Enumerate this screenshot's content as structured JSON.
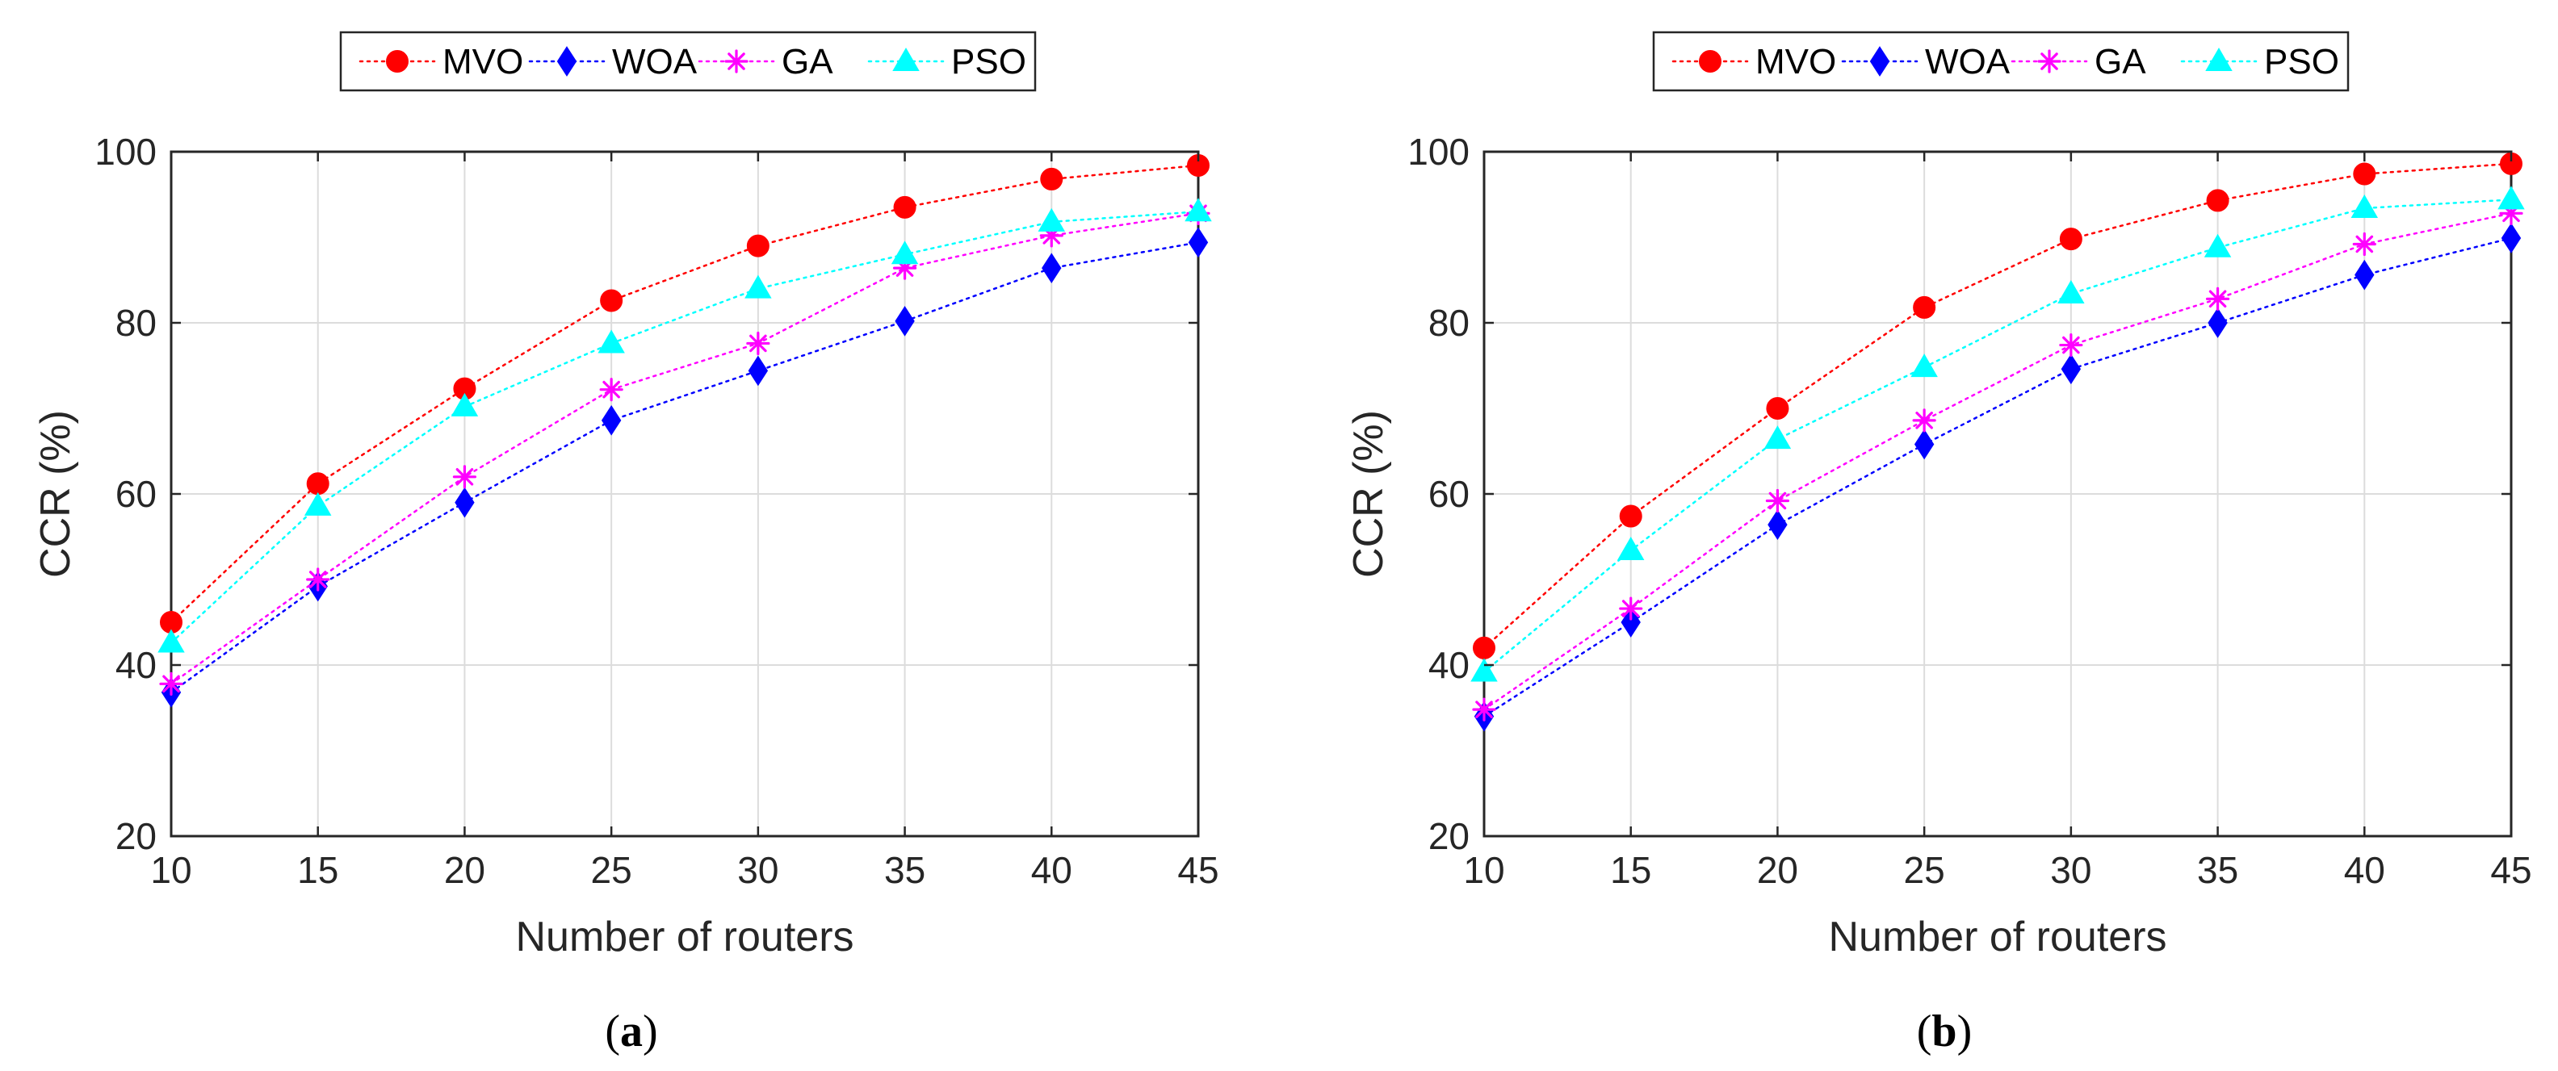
{
  "figure": {
    "background": "#ffffff"
  },
  "chart_data": [
    {
      "id": "a",
      "type": "line",
      "caption_letter": "a",
      "xlabel": "Number of routers",
      "ylabel": "CCR (%)",
      "x": [
        10,
        15,
        20,
        25,
        30,
        35,
        40,
        45
      ],
      "xlim": [
        10,
        45
      ],
      "ylim": [
        20,
        100
      ],
      "xticks": [
        10,
        15,
        20,
        25,
        30,
        35,
        40,
        45
      ],
      "yticks": [
        20,
        40,
        60,
        80,
        100
      ],
      "grid": true,
      "legend": "top-center",
      "series": [
        {
          "name": "MVO",
          "marker": "circle",
          "color": "#ff0000",
          "values": [
            45,
            61.2,
            72.3,
            82.6,
            89,
            93.5,
            96.8,
            98.4
          ]
        },
        {
          "name": "WOA",
          "marker": "diamond",
          "color": "#0000ff",
          "values": [
            36.8,
            49.2,
            59,
            68.6,
            74.4,
            80.2,
            86.4,
            89.4
          ]
        },
        {
          "name": "GA",
          "marker": "asterisk",
          "color": "#ff00ff",
          "values": [
            37.8,
            50,
            62,
            72.2,
            77.6,
            86.4,
            90.2,
            92.8
          ]
        },
        {
          "name": "PSO",
          "marker": "triangle",
          "color": "#00ffff",
          "values": [
            42.6,
            58.6,
            70.2,
            77.6,
            84,
            88,
            91.8,
            93
          ]
        }
      ]
    },
    {
      "id": "b",
      "type": "line",
      "caption_letter": "b",
      "xlabel": "Number of routers",
      "ylabel": "CCR (%)",
      "x": [
        10,
        15,
        20,
        25,
        30,
        35,
        40,
        45
      ],
      "xlim": [
        10,
        45
      ],
      "ylim": [
        20,
        100
      ],
      "xticks": [
        10,
        15,
        20,
        25,
        30,
        35,
        40,
        45
      ],
      "yticks": [
        20,
        40,
        60,
        80,
        100
      ],
      "grid": true,
      "legend": "top-center",
      "series": [
        {
          "name": "MVO",
          "marker": "circle",
          "color": "#ff0000",
          "values": [
            42,
            57.4,
            70,
            81.8,
            89.8,
            94.3,
            97.4,
            98.6
          ]
        },
        {
          "name": "WOA",
          "marker": "diamond",
          "color": "#0000ff",
          "values": [
            34,
            45,
            56.4,
            65.8,
            74.6,
            80,
            85.6,
            89.9
          ]
        },
        {
          "name": "GA",
          "marker": "asterisk",
          "color": "#ff00ff",
          "values": [
            34.8,
            46.6,
            59.2,
            68.6,
            77.4,
            82.8,
            89.2,
            92.8
          ]
        },
        {
          "name": "PSO",
          "marker": "triangle",
          "color": "#00ffff",
          "values": [
            39.2,
            53.4,
            66.4,
            74.8,
            83.4,
            88.8,
            93.4,
            94.4
          ]
        }
      ]
    }
  ]
}
